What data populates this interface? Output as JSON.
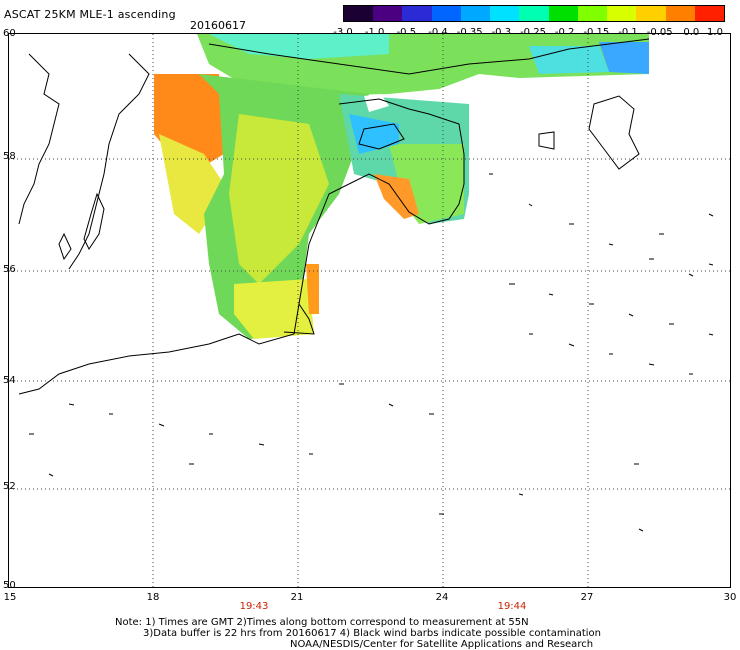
{
  "header": {
    "title": "ASCAT 25KM MLE-1 ascending",
    "date": "20160617"
  },
  "colorbar": {
    "labels": [
      "-3.0",
      "-1.0",
      "-0.5",
      "-0.4",
      "-0.35",
      "-0.3",
      "-0.25",
      "-0.2",
      "-0.15",
      "-0.1",
      "-0.05",
      "0.0",
      "1.0"
    ],
    "colors": [
      "#1a0033",
      "#4b0082",
      "#2b2bd6",
      "#0066ff",
      "#00a8ff",
      "#00e0ff",
      "#00ffb0",
      "#00e000",
      "#7fff00",
      "#d8ff00",
      "#ffd000",
      "#ff8000",
      "#ff2000"
    ]
  },
  "axes": {
    "lat_labels": [
      "60",
      "58",
      "56",
      "54",
      "52",
      "50"
    ],
    "lon_labels": [
      "15",
      "18",
      "21",
      "24",
      "27",
      "30"
    ],
    "lon_range": [
      15,
      30
    ],
    "lat_range": [
      50,
      60
    ]
  },
  "times": [
    "19:43",
    "19:44"
  ],
  "notes": {
    "line1": "Note: 1) Times are GMT 2)Times along bottom correspond to measurement at 55N",
    "line2": "3)Data buffer is 22 hrs from 20160617 4) Black wind barbs indicate possible contamination",
    "line3": "NOAA/NESDIS/Center for Satellite Applications and Research"
  }
}
